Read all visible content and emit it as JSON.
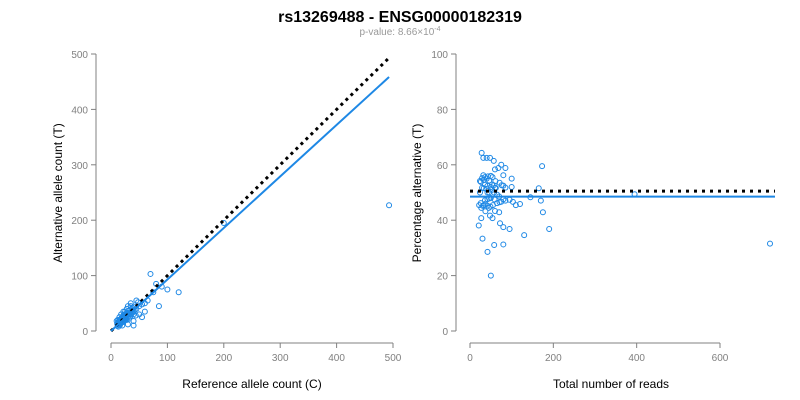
{
  "title": "rs13269488 - ENSG00000182319",
  "subtitle_prefix": "p-value: 8.66×10",
  "subtitle_exp": "-4",
  "colors": {
    "points": "#1E88E5",
    "fit": "#1E88E5",
    "reference": "#000000",
    "axis": "#808080"
  },
  "chart_data": [
    {
      "type": "scatter",
      "xlabel": "Reference allele count (C)",
      "ylabel": "Alternative allele count (T)",
      "xlim": [
        0,
        500
      ],
      "ylim": [
        0,
        500
      ],
      "xticks": [
        0,
        100,
        200,
        300,
        400,
        500
      ],
      "yticks": [
        0,
        100,
        200,
        300,
        400,
        500
      ],
      "fit_line": {
        "slope": 0.93,
        "intercept": 0
      },
      "reference_line": {
        "slope": 1,
        "intercept": 0
      },
      "points": [
        [
          15,
          18
        ],
        [
          20,
          22
        ],
        [
          12,
          14
        ],
        [
          25,
          28
        ],
        [
          18,
          15
        ],
        [
          30,
          32
        ],
        [
          22,
          20
        ],
        [
          14,
          12
        ],
        [
          35,
          30
        ],
        [
          28,
          33
        ],
        [
          16,
          20
        ],
        [
          19,
          17
        ],
        [
          24,
          26
        ],
        [
          11,
          13
        ],
        [
          27,
          22
        ],
        [
          33,
          38
        ],
        [
          21,
          25
        ],
        [
          17,
          14
        ],
        [
          26,
          24
        ],
        [
          13,
          16
        ],
        [
          29,
          31
        ],
        [
          23,
          19
        ],
        [
          31,
          28
        ],
        [
          12,
          10
        ],
        [
          36,
          40
        ],
        [
          40,
          35
        ],
        [
          18,
          22
        ],
        [
          20,
          17
        ],
        [
          15,
          12
        ],
        [
          22,
          28
        ],
        [
          34,
          26
        ],
        [
          25,
          20
        ],
        [
          19,
          24
        ],
        [
          14,
          18
        ],
        [
          38,
          33
        ],
        [
          42,
          38
        ],
        [
          45,
          40
        ],
        [
          30,
          25
        ],
        [
          27,
          30
        ],
        [
          16,
          11
        ],
        [
          13,
          8
        ],
        [
          24,
          30
        ],
        [
          21,
          16
        ],
        [
          50,
          45
        ],
        [
          55,
          48
        ],
        [
          40,
          30
        ],
        [
          48,
          52
        ],
        [
          35,
          45
        ],
        [
          28,
          20
        ],
        [
          32,
          22
        ],
        [
          44,
          28
        ],
        [
          60,
          50
        ],
        [
          65,
          55
        ],
        [
          80,
          85
        ],
        [
          75,
          70
        ],
        [
          85,
          45
        ],
        [
          40,
          10
        ],
        [
          30,
          12
        ],
        [
          20,
          10
        ],
        [
          18,
          30
        ],
        [
          25,
          35
        ],
        [
          12,
          20
        ],
        [
          15,
          25
        ],
        [
          22,
          35
        ],
        [
          28,
          40
        ],
        [
          10,
          18
        ],
        [
          35,
          50
        ],
        [
          45,
          55
        ],
        [
          30,
          45
        ],
        [
          40,
          18
        ],
        [
          50,
          30
        ],
        [
          55,
          25
        ],
        [
          60,
          35
        ],
        [
          90,
          80
        ],
        [
          70,
          103
        ],
        [
          200,
          195
        ],
        [
          493,
          227
        ],
        [
          100,
          75
        ],
        [
          120,
          70
        ],
        [
          38,
          42
        ],
        [
          26,
          27
        ],
        [
          17,
          19
        ],
        [
          23,
          23
        ],
        [
          29,
          29
        ],
        [
          33,
          32
        ],
        [
          14,
          15
        ],
        [
          19,
          20
        ],
        [
          21,
          21
        ],
        [
          36,
          34
        ],
        [
          41,
          44
        ],
        [
          12,
          12
        ],
        [
          16,
          17
        ],
        [
          24,
          22
        ]
      ]
    },
    {
      "type": "scatter",
      "xlabel": "Total number of reads",
      "ylabel": "Percentage alternative (T)",
      "xlim": [
        0,
        720
      ],
      "ylim": [
        0,
        100
      ],
      "xticks": [
        0,
        200,
        400,
        600
      ],
      "yticks": [
        0,
        20,
        40,
        60,
        80,
        100
      ],
      "fit_line": {
        "y": 48.5
      },
      "reference_line": {
        "y": 50.5
      },
      "derived_from": "points of chart 1: total = ref + alt, percent = 100*alt/total"
    }
  ]
}
